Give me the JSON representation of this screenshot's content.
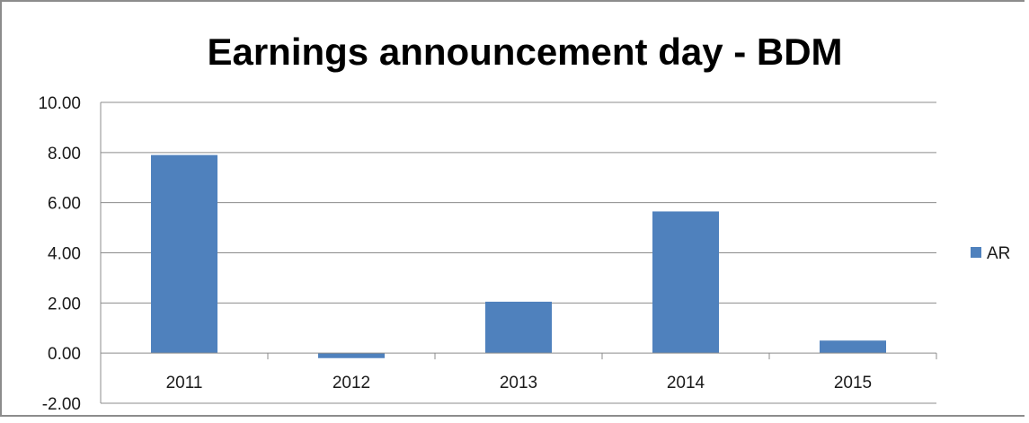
{
  "chart_data": {
    "type": "bar",
    "title": "Earnings announcement day - BDM",
    "xlabel": "",
    "ylabel": "",
    "categories": [
      "2011",
      "2012",
      "2013",
      "2014",
      "2015"
    ],
    "series": [
      {
        "name": "AR",
        "values": [
          7.9,
          -0.2,
          2.05,
          5.65,
          0.5
        ],
        "color": "#4f81bd"
      }
    ],
    "ylim": [
      -2.0,
      10.0
    ],
    "yticks": [
      "-2.00",
      "0.00",
      "2.00",
      "4.00",
      "6.00",
      "8.00",
      "10.00"
    ],
    "grid": true,
    "legend_position": "right"
  }
}
